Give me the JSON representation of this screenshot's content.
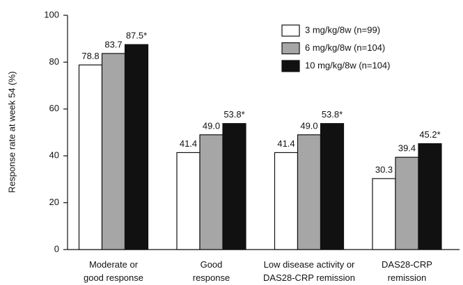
{
  "chart_data": {
    "type": "bar",
    "y_label": "Response rate at week 54 (%)",
    "categories": [
      [
        "Moderate or",
        "good response"
      ],
      [
        "Good",
        "response"
      ],
      [
        "Low disease activity or",
        "DAS28-CRP remission"
      ],
      [
        "DAS28-CRP",
        "remission"
      ]
    ],
    "series": [
      {
        "name": "3 mg/kg/8w (n=99)",
        "color": "#ffffff",
        "values": [
          78.8,
          41.4,
          41.4,
          30.3
        ],
        "value_labels": [
          "78.8",
          "41.4",
          "41.4",
          "30.3"
        ]
      },
      {
        "name": "6 mg/kg/8w (n=104)",
        "color": "#a6a6a6",
        "values": [
          83.7,
          49.0,
          49.0,
          39.4
        ],
        "value_labels": [
          "83.7",
          "49.0",
          "49.0",
          "39.4"
        ]
      },
      {
        "name": "10 mg/kg/8w (n=104)",
        "color": "#111111",
        "values": [
          87.5,
          53.8,
          53.8,
          45.2
        ],
        "value_labels": [
          "87.5*",
          "53.8*",
          "53.8*",
          "45.2*"
        ]
      }
    ],
    "ylim": [
      0,
      100
    ],
    "yticks": [
      0,
      20,
      40,
      60,
      80,
      100
    ],
    "legend": "upper right"
  }
}
